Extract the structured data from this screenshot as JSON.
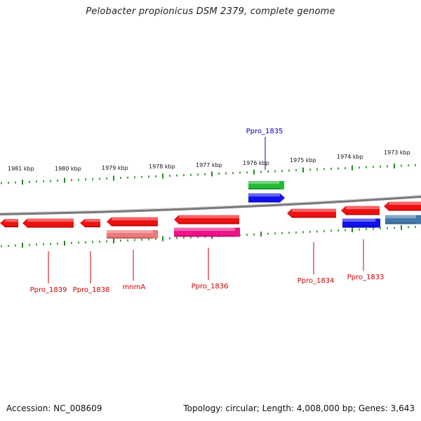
{
  "title": "Pelobacter propionicus DSM 2379, complete genome",
  "footer": {
    "accession": "Accession: NC_008609",
    "summary": "Topology: circular; Length: 4,008,000 bp; Genes: 3,643"
  },
  "colors": {
    "forward_gene": "#ee1111",
    "reverse_gene": "#ee1111",
    "rna_gene": "#1111ee",
    "misc_gene": "#22bb33",
    "backbone": "#888888",
    "tick": "#228822",
    "label_red": "#cc0000",
    "label_blue": "#0000cc"
  },
  "axis": {
    "kbp_labels": [
      "1981 kbp",
      "1980 kbp",
      "1979 kbp",
      "1978 kbp",
      "1977 kbp",
      "1976 kbp",
      "1975 kbp",
      "1974 kbp",
      "1973 kbp"
    ]
  },
  "gene_labels": [
    {
      "text": "Ppro_1835",
      "color": "blue"
    },
    {
      "text": "Ppro_1839",
      "color": "red"
    },
    {
      "text": "Ppro_1838",
      "color": "red"
    },
    {
      "text": "mnmA",
      "color": "red"
    },
    {
      "text": "Ppro_1836",
      "color": "red"
    },
    {
      "text": "Ppro_1834",
      "color": "red"
    },
    {
      "text": "Ppro_1833",
      "color": "red"
    }
  ]
}
